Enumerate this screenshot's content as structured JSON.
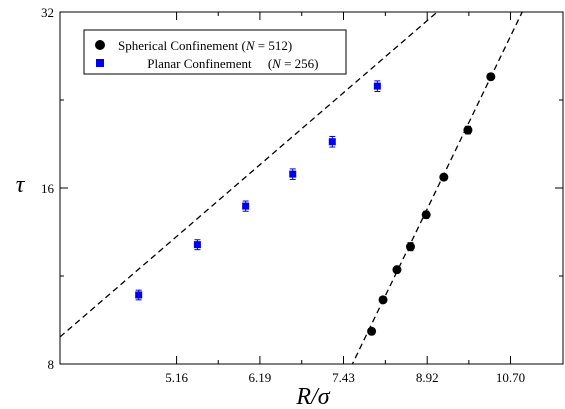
{
  "chart_data": {
    "type": "scatter",
    "xscale": "log",
    "yscale": "log",
    "xlim": [
      4.0,
      12.0
    ],
    "ylim": [
      8,
      32
    ],
    "x_tick_labels": [
      "5.16",
      "6.19",
      "7.43",
      "8.92",
      "10.70"
    ],
    "x_tick_values": [
      5.16,
      6.19,
      7.43,
      8.92,
      10.7
    ],
    "y_tick_labels": [
      "8",
      "16",
      "32"
    ],
    "y_tick_values": [
      8,
      16,
      32
    ],
    "xlabel": "R/σ",
    "ylabel": "τ",
    "legend": {
      "placement": "top-left",
      "entries": [
        {
          "label_main": "Spherical Confinement (",
          "label_var": "N",
          "label_tail": " = 512)"
        },
        {
          "label_main": "Planar Confinement     (",
          "label_var": "N",
          "label_tail": " = 256)"
        }
      ]
    },
    "series": [
      {
        "name": "Spherical Confinement (N = 512)",
        "marker": "circle",
        "color": "#000000",
        "x": [
          7.9,
          8.1,
          8.35,
          8.6,
          8.9,
          9.25,
          9.75,
          10.25
        ],
        "y": [
          9.1,
          10.3,
          11.6,
          12.7,
          14.4,
          16.7,
          20.1,
          24.8
        ],
        "yerr": [
          0.1,
          0.12,
          0.15,
          0.2,
          0.2,
          0.2,
          0.3,
          0.3
        ],
        "fit": {
          "x": [
            7.55,
            11.2
          ],
          "y": [
            7.9,
            34.5
          ]
        }
      },
      {
        "name": "Planar Confinement (N = 256)",
        "marker": "square",
        "color": "#0000ee",
        "x": [
          4.75,
          5.4,
          6.0,
          6.65,
          7.25,
          8.0
        ],
        "y": [
          10.5,
          12.8,
          14.9,
          16.9,
          19.2,
          23.9
        ],
        "yerr": [
          0.2,
          0.25,
          0.3,
          0.35,
          0.4,
          0.5
        ],
        "fit": {
          "x": [
            4.0,
            9.3
          ],
          "y": [
            8.9,
            33.0
          ]
        }
      }
    ]
  }
}
